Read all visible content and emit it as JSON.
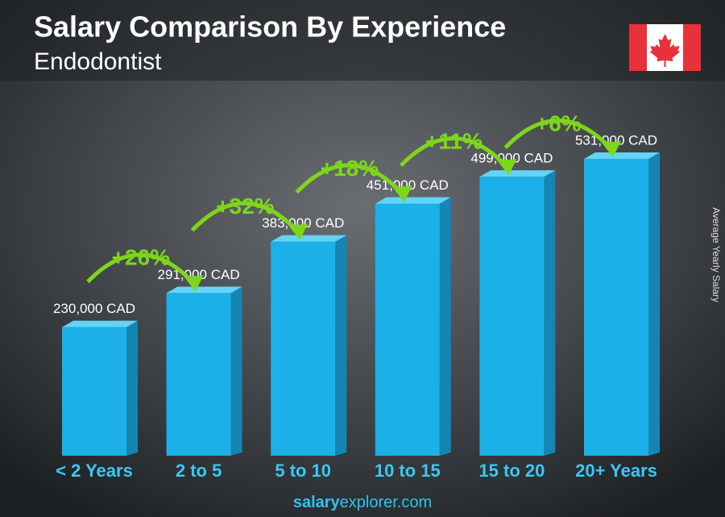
{
  "chart_data": {
    "type": "bar3d",
    "title": "Salary Comparison By Experience",
    "subtitle": "Endodontist",
    "y_axis_label": "Average Yearly Salary",
    "categories": [
      "< 2 Years",
      "2 to 5",
      "5 to 10",
      "10 to 15",
      "15 to 20",
      "20+ Years"
    ],
    "values": [
      230000,
      291000,
      383000,
      451000,
      499000,
      531000
    ],
    "value_labels": [
      "230,000 CAD",
      "291,000 CAD",
      "383,000 CAD",
      "451,000 CAD",
      "499,000 CAD",
      "531,000 CAD"
    ],
    "change_labels": [
      "+26%",
      "+32%",
      "+18%",
      "+11%",
      "+6%"
    ],
    "color": "#1cb0e8",
    "change_color": "#7ed61a",
    "footer": {
      "bold": "salary",
      "rest": "explorer.com"
    }
  }
}
